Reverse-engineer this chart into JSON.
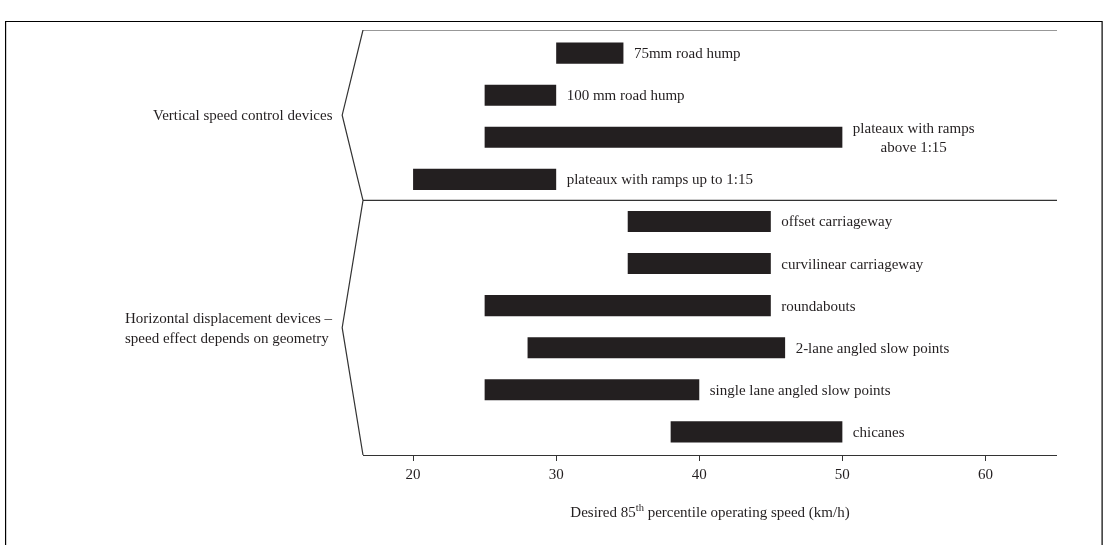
{
  "chart_data": {
    "type": "bar",
    "orientation": "horizontal",
    "xlabel": "Desired 85$^{th}$ percentile operating speed (km/h)",
    "categories": [
      "75mm road hump",
      "100 mm road hump",
      "plateaux with ramps\nabove 1:15",
      "plateaux with ramps up to 1:15",
      "offset carriageway",
      "curvilinear carriageway",
      "roundabouts",
      "2-lane angled slow points",
      "single lane angled slow points",
      "chicanes"
    ],
    "base": [
      30,
      25,
      25,
      20,
      35,
      35,
      25,
      28,
      25,
      38
    ],
    "values": [
      4.7,
      5,
      25,
      10,
      10,
      10,
      20,
      18,
      15,
      12
    ],
    "color": "#231f20",
    "xlim": [
      16.5,
      65
    ],
    "xticks": [
      20,
      30,
      40,
      50,
      60
    ],
    "tick_labels": "x",
    "legend": false,
    "annotations": [
      "Vertical speed control devices",
      "Horizontal displacement devices –\nspeed effect depends on geometry"
    ]
  }
}
